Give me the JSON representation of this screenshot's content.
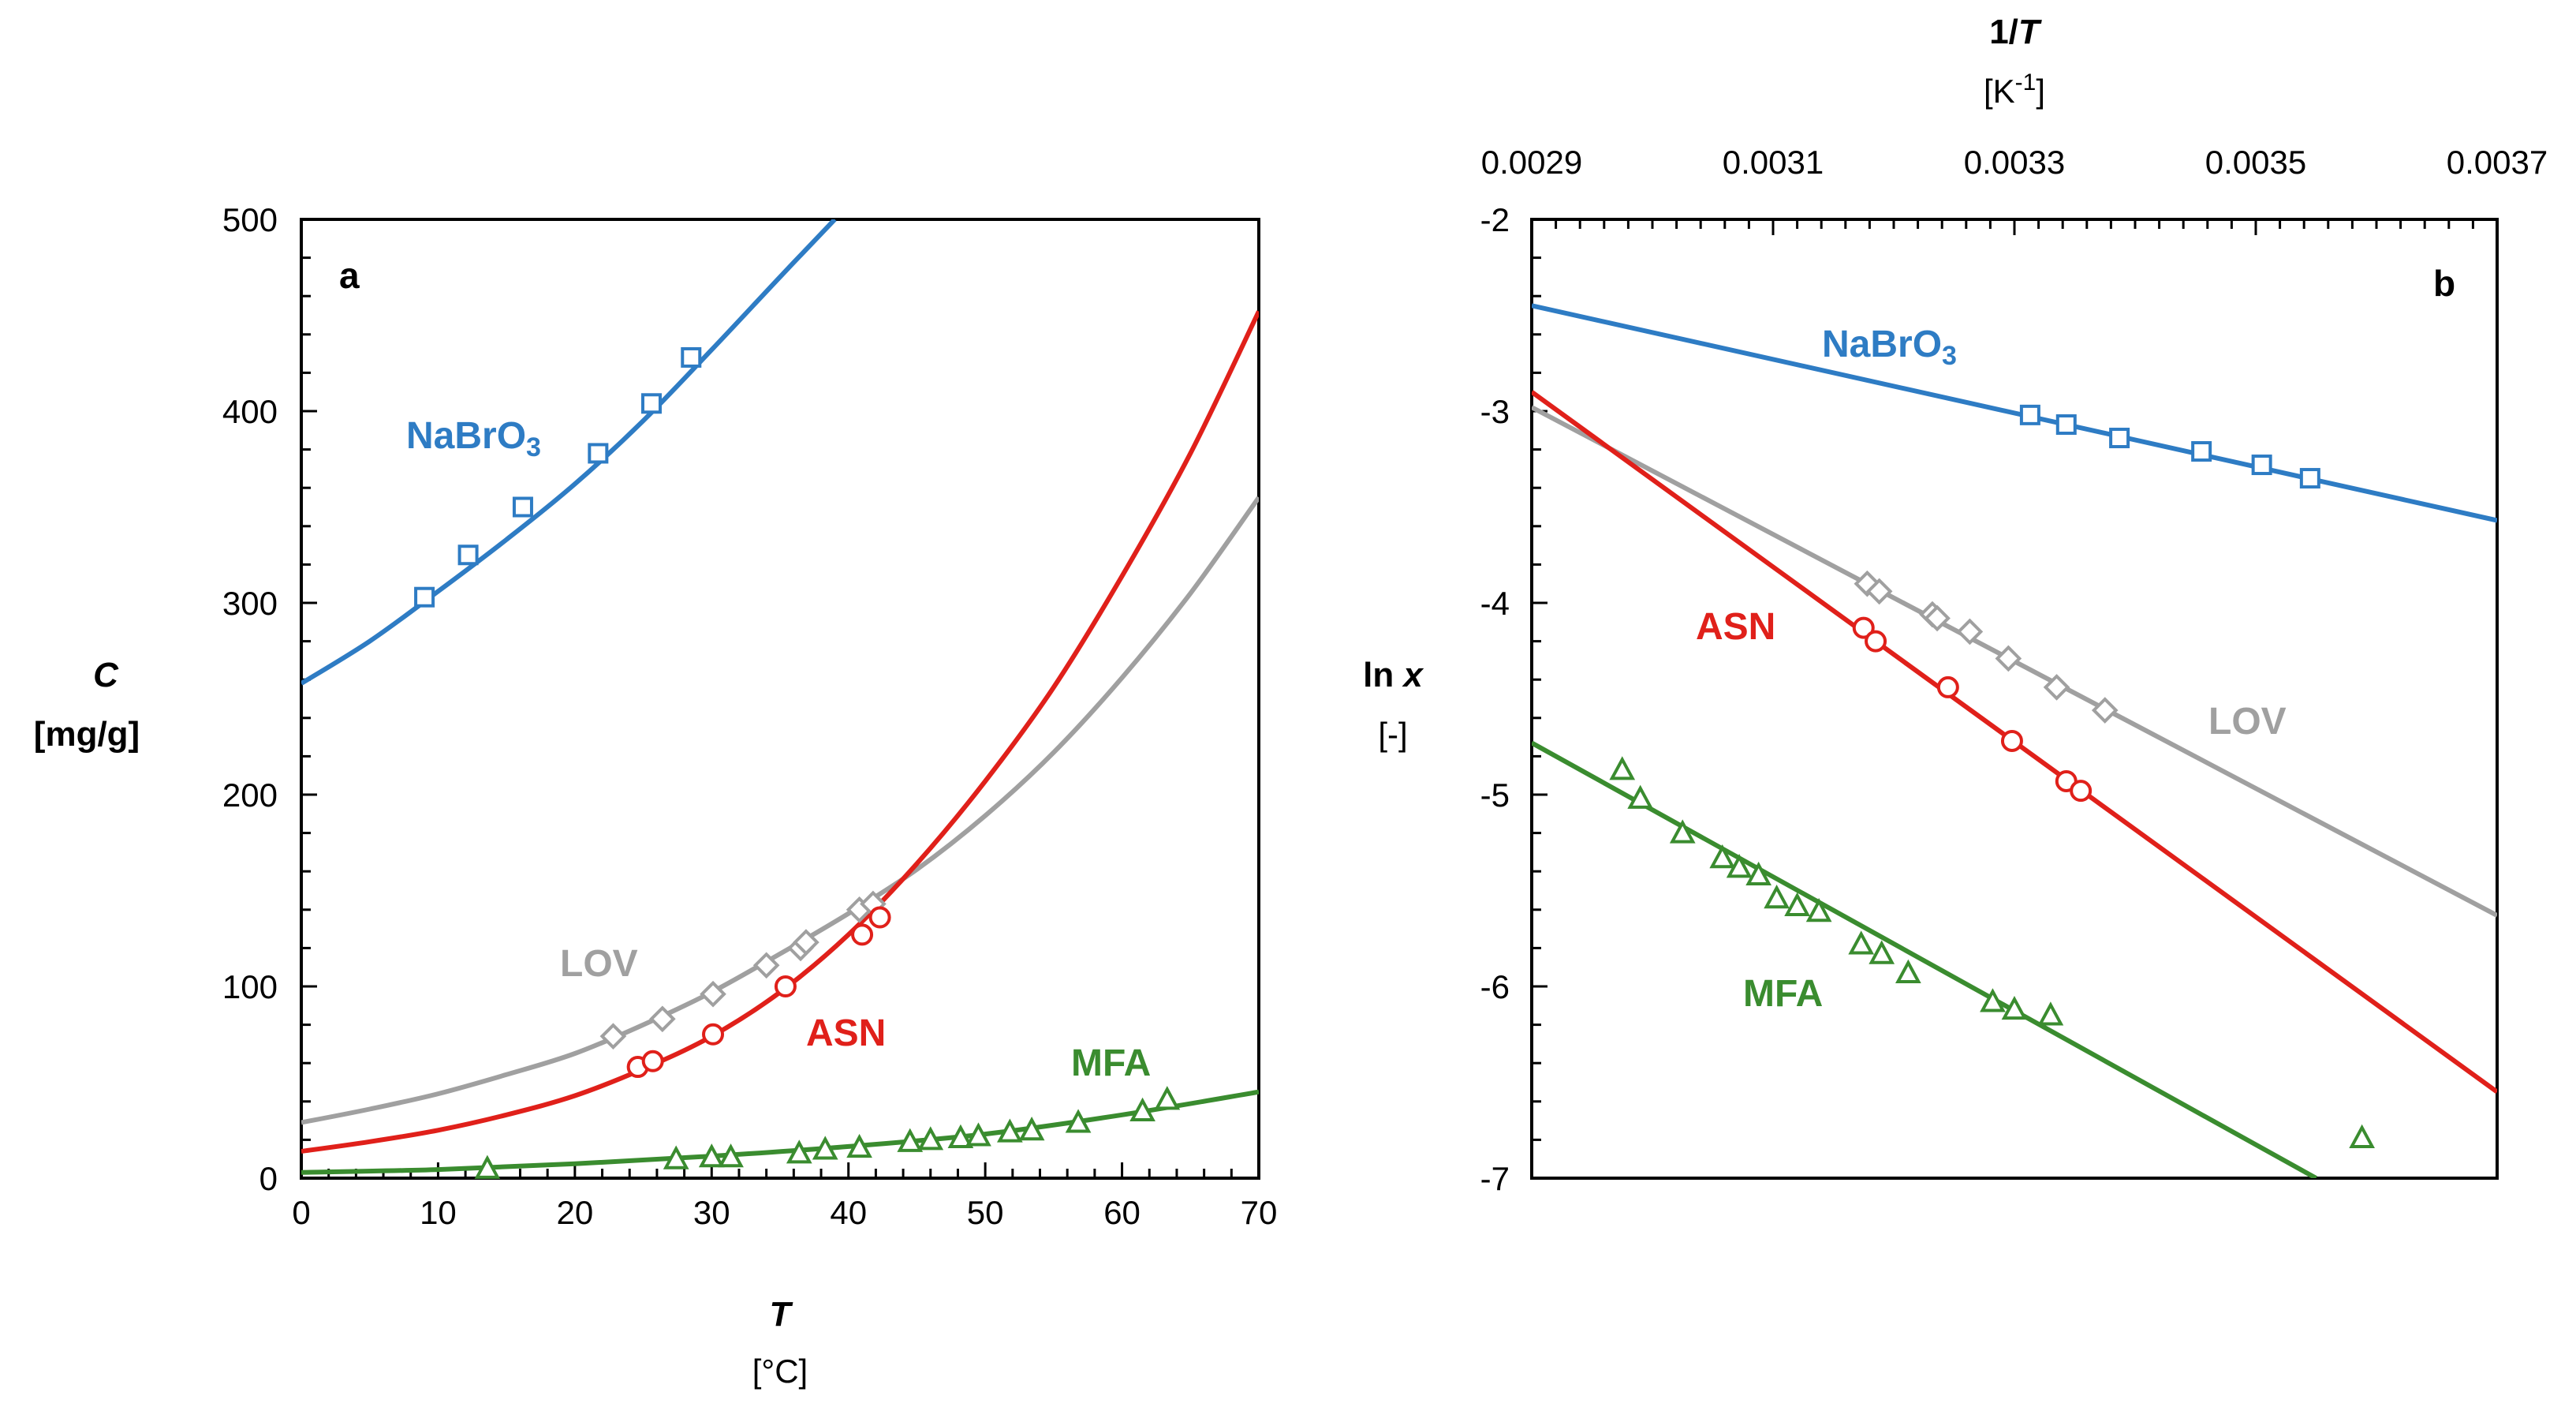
{
  "chart_data": [
    {
      "panel": "a",
      "type": "scatter",
      "xlabel": "T",
      "xunit": "[°C]",
      "ylabel": "C",
      "yunit": "[mg/g]",
      "xlim": [
        0,
        70
      ],
      "ylim": [
        0,
        500
      ],
      "xticks": [
        0,
        10,
        20,
        30,
        40,
        50,
        60,
        70
      ],
      "yticks": [
        0,
        100,
        200,
        300,
        400,
        500
      ],
      "grid": false,
      "series": [
        {
          "name": "NaBrO3",
          "label_main": "NaBrO",
          "label_sub": "3",
          "color": "#2e7cc4",
          "marker": "square",
          "points": [
            [
              9,
              303
            ],
            [
              12.2,
              325
            ],
            [
              16.2,
              350
            ],
            [
              21.7,
              378
            ],
            [
              25.6,
              404
            ],
            [
              28.5,
              428
            ]
          ],
          "fit": [
            [
              0,
              258
            ],
            [
              5,
              280
            ],
            [
              10,
              306
            ],
            [
              15,
              333
            ],
            [
              20,
              362
            ],
            [
              25,
              395
            ],
            [
              30,
              432
            ],
            [
              35,
              470
            ],
            [
              39,
              500
            ]
          ]
        },
        {
          "name": "LOV",
          "label_main": "LOV",
          "color": "#a0a0a0",
          "marker": "diamond",
          "points": [
            [
              22.8,
              74
            ],
            [
              26.4,
              83
            ],
            [
              30.1,
              96
            ],
            [
              34,
              111
            ],
            [
              36.5,
              120
            ],
            [
              36.9,
              123
            ],
            [
              40.8,
              140
            ],
            [
              41.8,
              143
            ]
          ],
          "fit": [
            [
              0,
              29
            ],
            [
              5,
              36
            ],
            [
              10,
              44
            ],
            [
              15,
              54
            ],
            [
              20,
              65
            ],
            [
              25,
              80
            ],
            [
              30,
              97
            ],
            [
              35,
              117
            ],
            [
              40,
              138
            ],
            [
              45,
              161
            ],
            [
              50,
              189
            ],
            [
              55,
              222
            ],
            [
              60,
              261
            ],
            [
              65,
              305
            ],
            [
              70,
              355
            ]
          ]
        },
        {
          "name": "ASN",
          "label_main": "ASN",
          "color": "#e0201a",
          "marker": "circle",
          "points": [
            [
              24.6,
              58
            ],
            [
              25.7,
              61
            ],
            [
              30.1,
              75
            ],
            [
              35.4,
              100
            ],
            [
              41,
              127
            ],
            [
              42.3,
              136
            ]
          ],
          "fit": [
            [
              0,
              14
            ],
            [
              5,
              19
            ],
            [
              10,
              25
            ],
            [
              15,
              33
            ],
            [
              20,
              43
            ],
            [
              25,
              57
            ],
            [
              30,
              74
            ],
            [
              35,
              97
            ],
            [
              40,
              127
            ],
            [
              45,
              164
            ],
            [
              50,
              207
            ],
            [
              55,
              256
            ],
            [
              60,
              314
            ],
            [
              65,
              378
            ],
            [
              70,
              452
            ]
          ]
        },
        {
          "name": "MFA",
          "label_main": "MFA",
          "color": "#3a8c2f",
          "marker": "triangle",
          "points": [
            [
              13.6,
              5
            ],
            [
              27.4,
              10
            ],
            [
              30,
              11
            ],
            [
              31.4,
              11
            ],
            [
              36.4,
              13
            ],
            [
              38.3,
              15
            ],
            [
              40.8,
              16
            ],
            [
              44.5,
              19
            ],
            [
              46,
              20
            ],
            [
              48.2,
              21
            ],
            [
              49.5,
              22
            ],
            [
              51.8,
              24
            ],
            [
              53.4,
              25
            ],
            [
              56.8,
              29
            ],
            [
              61.5,
              35
            ],
            [
              63.3,
              41
            ]
          ],
          "fit": [
            [
              0,
              3
            ],
            [
              10,
              4.5
            ],
            [
              20,
              7.5
            ],
            [
              30,
              11.5
            ],
            [
              40,
              16.5
            ],
            [
              50,
              23
            ],
            [
              60,
              33
            ],
            [
              70,
              45
            ]
          ]
        }
      ],
      "labels": {
        "panel": "a",
        "NaBrO3": "NaBrO",
        "NaBrO3_sub": "3",
        "LOV": "LOV",
        "ASN": "ASN",
        "MFA": "MFA"
      }
    },
    {
      "panel": "b",
      "type": "scatter",
      "xlabel_main": "1/",
      "xlabel_var": "T",
      "xunit_main": "[K",
      "xunit_sup": "-1",
      "xunit_end": "]",
      "ylabel_main": "ln ",
      "ylabel_var": "x",
      "yunit": "[-]",
      "xlim": [
        0.0029,
        0.0037
      ],
      "ylim": [
        -7,
        -2
      ],
      "xticks": [
        "0.0029",
        "0.0031",
        "0.0033",
        "0.0035",
        "0.0037"
      ],
      "yticks": [
        "-2",
        "-3",
        "-4",
        "-5",
        "-6",
        "-7"
      ],
      "x_axis_position": "top",
      "grid": false,
      "series": [
        {
          "name": "NaBrO3",
          "color": "#2e7cc4",
          "marker": "square",
          "points": [
            [
              0.003313,
              -3.02
            ],
            [
              0.003343,
              -3.07
            ],
            [
              0.003387,
              -3.14
            ],
            [
              0.003455,
              -3.21
            ],
            [
              0.003505,
              -3.28
            ],
            [
              0.003545,
              -3.35
            ]
          ],
          "fit": [
            [
              0.0029,
              -2.45
            ],
            [
              0.0037,
              -3.57
            ]
          ]
        },
        {
          "name": "LOV",
          "color": "#a0a0a0",
          "marker": "diamond",
          "points": [
            [
              0.003178,
              -3.9
            ],
            [
              0.003188,
              -3.94
            ],
            [
              0.003232,
              -4.06
            ],
            [
              0.003236,
              -4.08
            ],
            [
              0.003263,
              -4.15
            ],
            [
              0.003295,
              -4.29
            ],
            [
              0.003335,
              -4.44
            ],
            [
              0.003375,
              -4.56
            ]
          ],
          "fit": [
            [
              0.0029,
              -2.98
            ],
            [
              0.0037,
              -5.63
            ]
          ]
        },
        {
          "name": "ASN",
          "color": "#e0201a",
          "marker": "circle",
          "points": [
            [
              0.003175,
              -4.13
            ],
            [
              0.003185,
              -4.2
            ],
            [
              0.003245,
              -4.44
            ],
            [
              0.003298,
              -4.72
            ],
            [
              0.003343,
              -4.93
            ],
            [
              0.003355,
              -4.98
            ]
          ],
          "fit": [
            [
              0.0029,
              -2.9
            ],
            [
              0.0037,
              -6.55
            ]
          ]
        },
        {
          "name": "MFA",
          "color": "#3a8c2f",
          "marker": "triangle",
          "points": [
            [
              0.002975,
              -4.87
            ],
            [
              0.00299,
              -5.02
            ],
            [
              0.003025,
              -5.2
            ],
            [
              0.003058,
              -5.33
            ],
            [
              0.003072,
              -5.38
            ],
            [
              0.003088,
              -5.42
            ],
            [
              0.003103,
              -5.54
            ],
            [
              0.00312,
              -5.58
            ],
            [
              0.003138,
              -5.61
            ],
            [
              0.003173,
              -5.78
            ],
            [
              0.00319,
              -5.83
            ],
            [
              0.003212,
              -5.93
            ],
            [
              0.003282,
              -6.08
            ],
            [
              0.0033,
              -6.12
            ],
            [
              0.00333,
              -6.15
            ],
            [
              0.003588,
              -6.79
            ]
          ],
          "fit": [
            [
              0.0029,
              -4.73
            ],
            [
              0.00355,
              -7.0
            ]
          ]
        }
      ],
      "labels": {
        "panel": "b",
        "NaBrO3": "NaBrO",
        "NaBrO3_sub": "3",
        "LOV": "LOV",
        "ASN": "ASN",
        "MFA": "MFA"
      }
    }
  ]
}
